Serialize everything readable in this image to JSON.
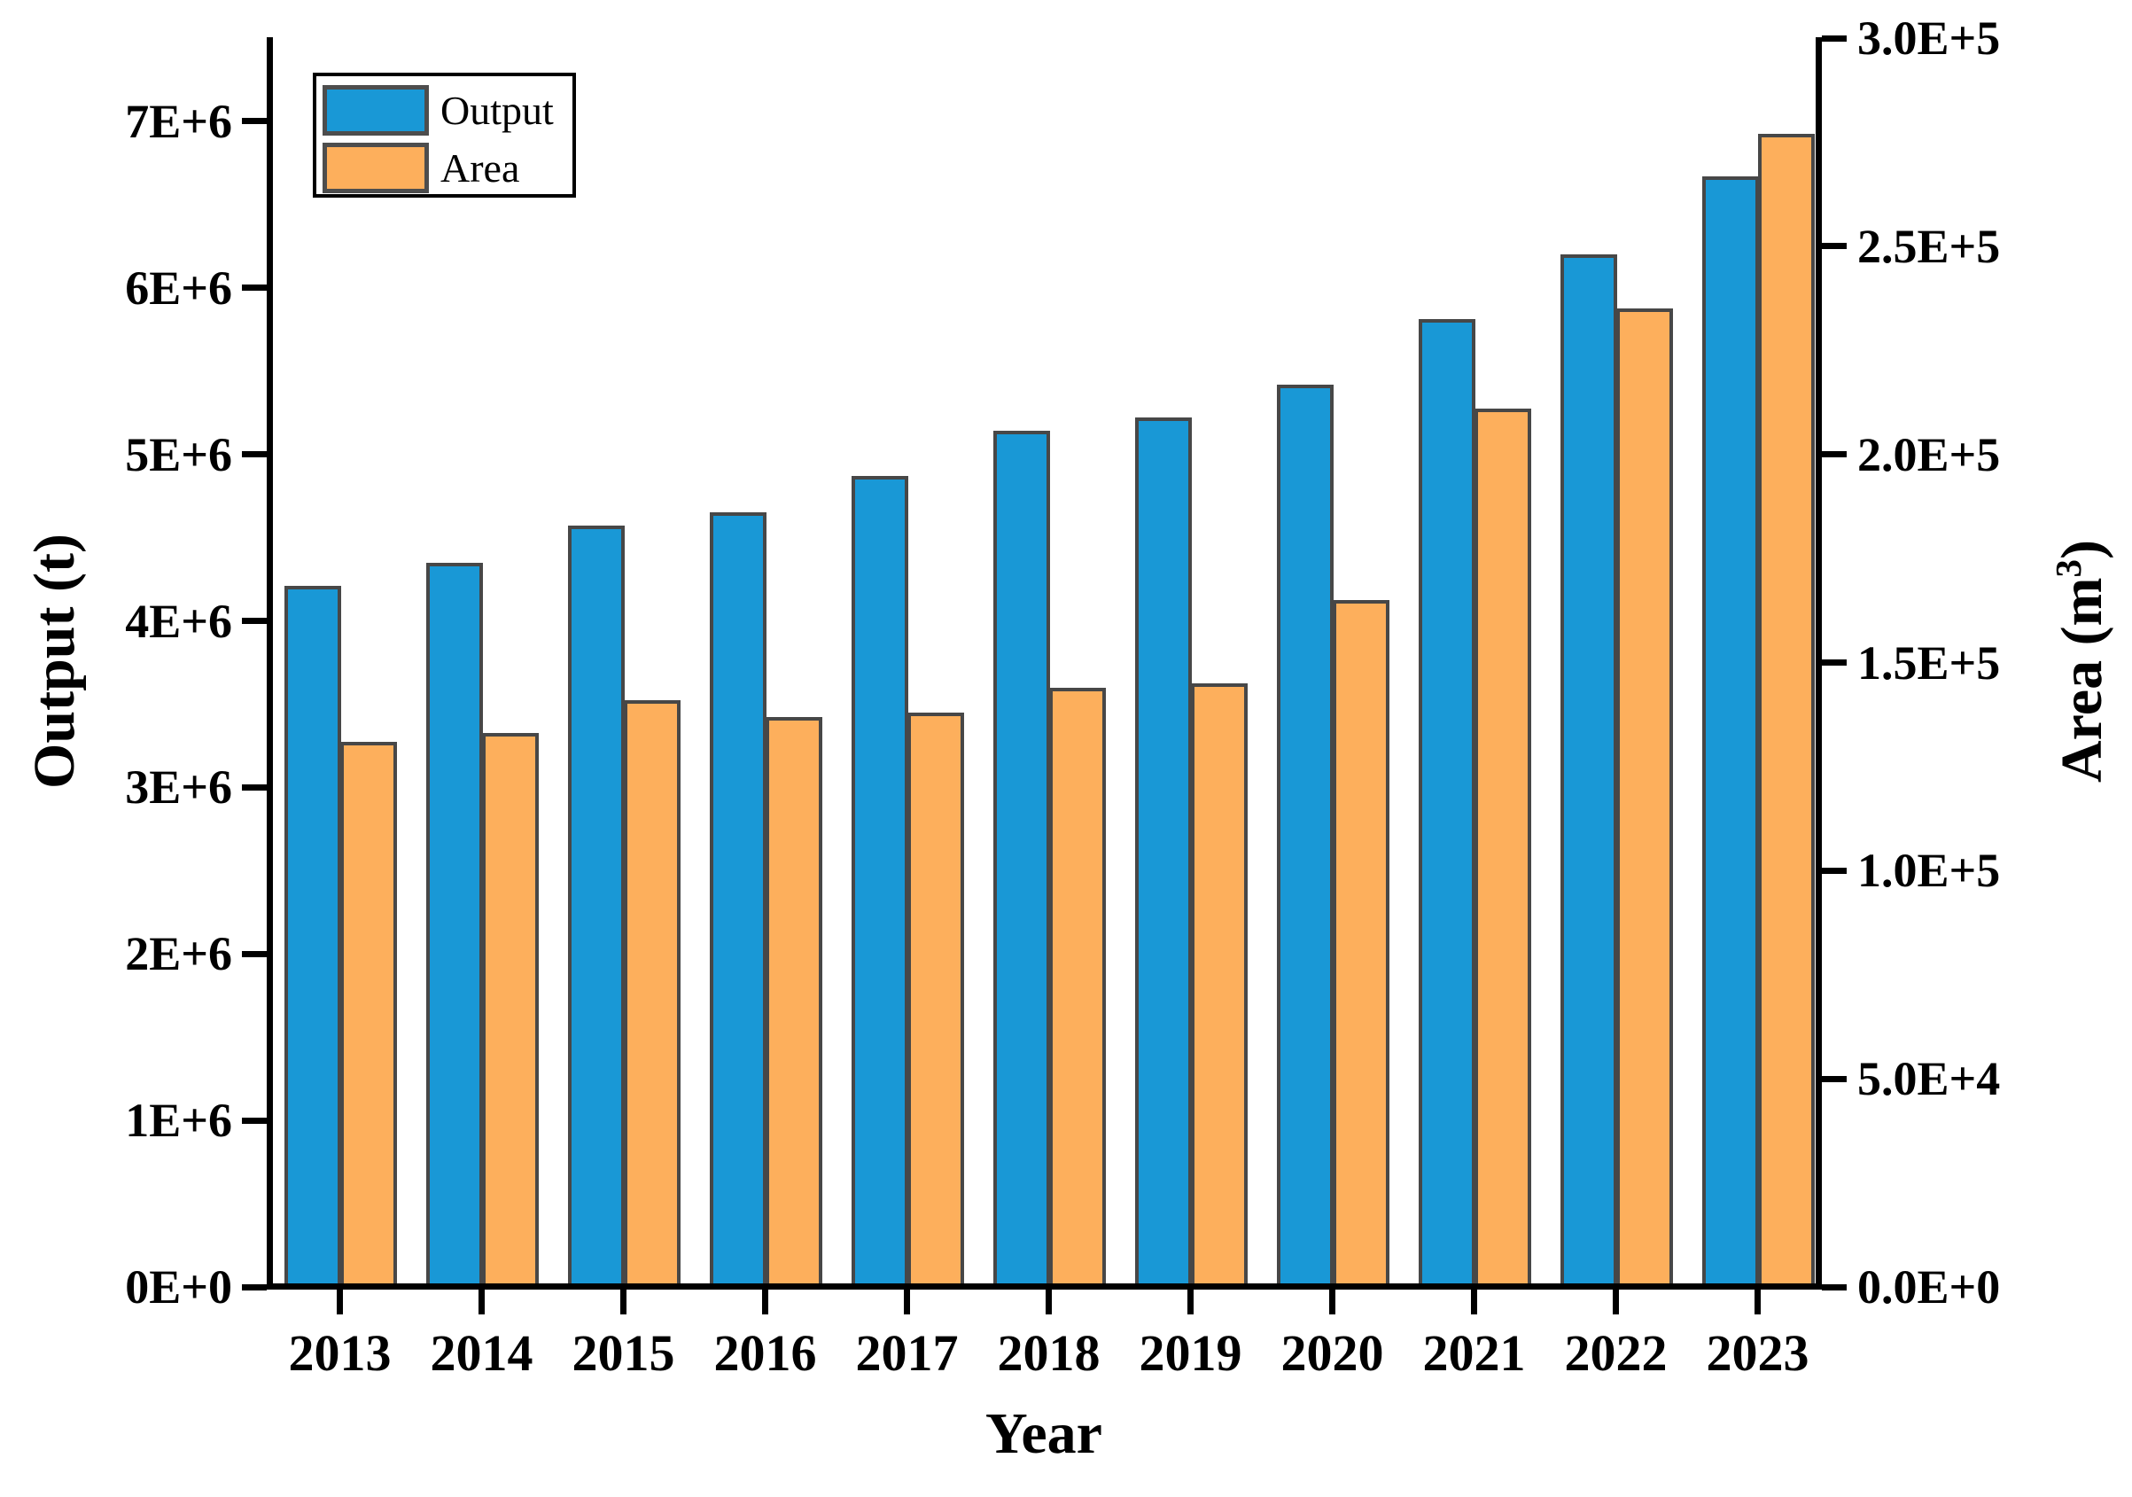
{
  "chart_data": {
    "type": "bar",
    "title": "",
    "categories": [
      "2013",
      "2014",
      "2015",
      "2016",
      "2017",
      "2018",
      "2019",
      "2020",
      "2021",
      "2022",
      "2023"
    ],
    "series": [
      {
        "name": "Output",
        "axis": "left",
        "color": "#1998D6",
        "values": [
          4210000,
          4350000,
          4570000,
          4650000,
          4870000,
          5140000,
          5220000,
          5420000,
          5810000,
          6200000,
          6670000
        ]
      },
      {
        "name": "Area",
        "axis": "right",
        "color": "#FDAF5C",
        "values": [
          131000,
          133000,
          141000,
          137000,
          138000,
          144000,
          145000,
          165000,
          211000,
          235000,
          277000
        ]
      }
    ],
    "xlabel": "Year",
    "ylabel_left": "Output (t)",
    "ylabel_right": {
      "pre": "Area (m",
      "sup": "3",
      "post": ")"
    },
    "ylim_left": [
      0,
      7500000
    ],
    "ylim_right": [
      0,
      300000
    ],
    "grid": false,
    "legend_position": "top-left",
    "left_ticks": [
      {
        "value": 0,
        "label": "0E+0"
      },
      {
        "value": 1000000,
        "label": "1E+6"
      },
      {
        "value": 2000000,
        "label": "2E+6"
      },
      {
        "value": 3000000,
        "label": "3E+6"
      },
      {
        "value": 4000000,
        "label": "4E+6"
      },
      {
        "value": 5000000,
        "label": "5E+6"
      },
      {
        "value": 6000000,
        "label": "6E+6"
      },
      {
        "value": 7000000,
        "label": "7E+6"
      }
    ],
    "right_ticks": [
      {
        "value": 0,
        "label": "0.0E+0"
      },
      {
        "value": 50000,
        "label": "5.0E+4"
      },
      {
        "value": 100000,
        "label": "1.0E+5"
      },
      {
        "value": 150000,
        "label": "1.5E+5"
      },
      {
        "value": 200000,
        "label": "2.0E+5"
      },
      {
        "value": 250000,
        "label": "2.5E+5"
      },
      {
        "value": 300000,
        "label": "3.0E+5"
      }
    ]
  },
  "styles": {
    "bar_border": "#474747",
    "axis_color": "#000000",
    "background": "#FFFFFF",
    "output_color": "#1998D6",
    "area_color": "#FDAF5C"
  }
}
